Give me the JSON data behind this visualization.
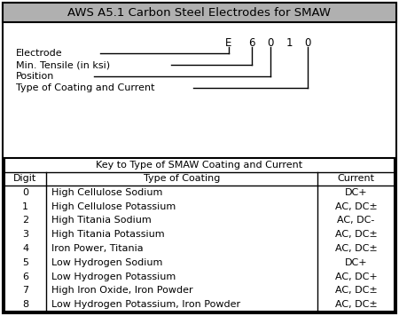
{
  "title": "AWS A5.1 Carbon Steel Electrodes for SMAW",
  "title_bg": "#b0b0b0",
  "labels": [
    "Electrode",
    "Min. Tensile (in ksi)",
    "Position",
    "Type of Coating and Current"
  ],
  "table_title": "Key to Type of SMAW Coating and Current",
  "col_headers": [
    "Digit",
    "Type of Coating",
    "Current"
  ],
  "rows": [
    [
      "0",
      "High Cellulose Sodium",
      "DC+"
    ],
    [
      "1",
      "High Cellulose Potassium",
      "AC, DC±"
    ],
    [
      "2",
      "High Titania Sodium",
      "AC, DC-"
    ],
    [
      "3",
      "High Titania Potassium",
      "AC, DC±"
    ],
    [
      "4",
      "Iron Power, Titania",
      "AC, DC±"
    ],
    [
      "5",
      "Low Hydrogen Sodium",
      "DC+"
    ],
    [
      "6",
      "Low Hydrogen Potassium",
      "AC, DC+"
    ],
    [
      "7",
      "High Iron Oxide, Iron Powder",
      "AC, DC±"
    ],
    [
      "8",
      "Low Hydrogen Potassium, Iron Powder",
      "AC, DC±"
    ]
  ],
  "bg_color": "#ffffff",
  "border_color": "#000000",
  "text_color": "#000000",
  "font_size": 8.0
}
